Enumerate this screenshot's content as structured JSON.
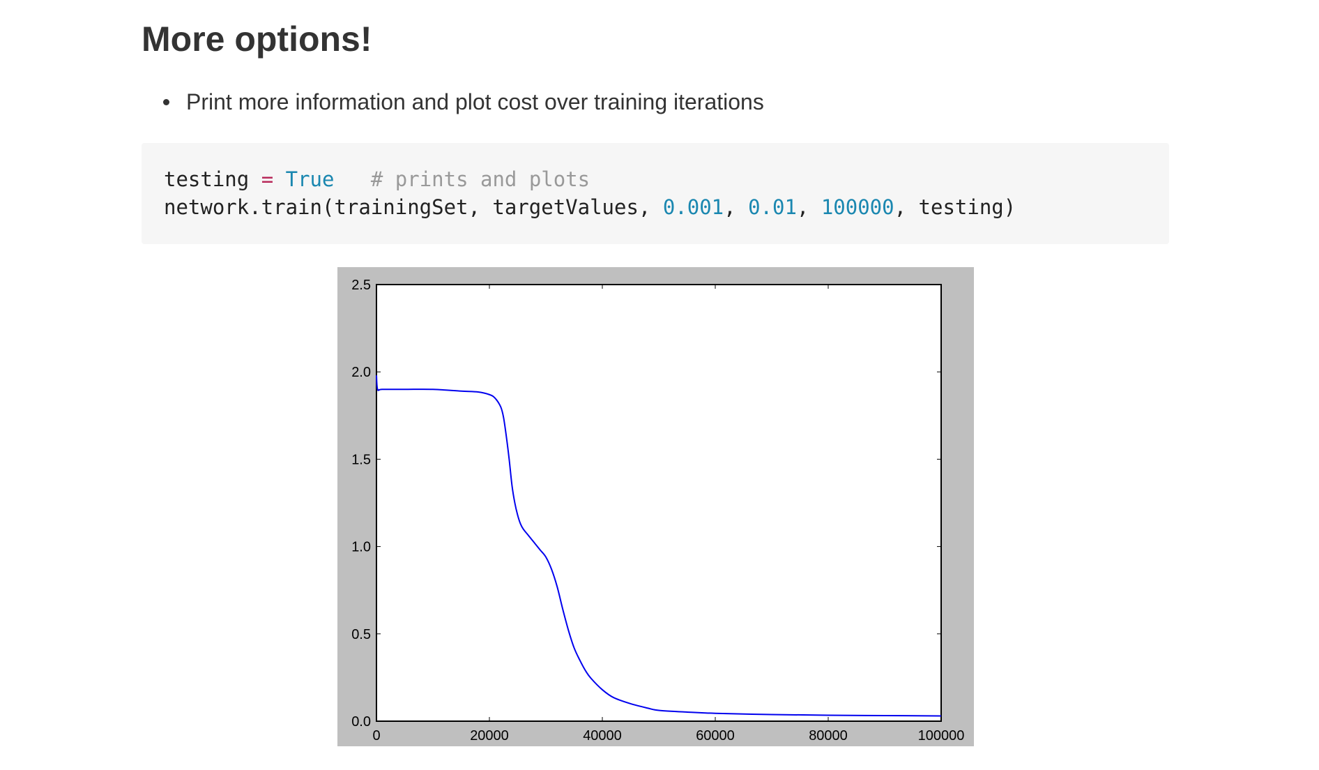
{
  "heading": "More options!",
  "bullets": [
    "Print more information and plot cost over training iterations"
  ],
  "code": {
    "line1": {
      "var": "testing ",
      "op": "=",
      "space": " ",
      "kw": "True",
      "gap": "   ",
      "comment": "# prints and plots"
    },
    "line2": {
      "prefix": "network.train(trainingSet, targetValues, ",
      "num1": "0.001",
      "sep1": ", ",
      "num2": "0.01",
      "sep2": ", ",
      "num3": "100000",
      "suffix": ", testing)"
    }
  },
  "colors": {
    "figure_background": "#bfbfbf",
    "line": "#0000ee",
    "code_background": "#f6f6f6"
  },
  "chart_data": {
    "type": "line",
    "title": "",
    "xlabel": "",
    "ylabel": "",
    "xlim": [
      0,
      100000
    ],
    "ylim": [
      0,
      2.5
    ],
    "xticks": [
      0,
      20000,
      40000,
      60000,
      80000,
      100000
    ],
    "yticks": [
      0.0,
      0.5,
      1.0,
      1.5,
      2.0,
      2.5
    ],
    "xtick_labels": [
      "0",
      "20000",
      "40000",
      "60000",
      "80000",
      "100000"
    ],
    "ytick_labels": [
      "0.0",
      "0.5",
      "1.0",
      "1.5",
      "2.0",
      "2.5"
    ],
    "grid": false,
    "legend": "none",
    "series": [
      {
        "x": [
          0,
          200,
          1000,
          5000,
          10000,
          15000,
          18000,
          20000,
          21000,
          22000,
          22500,
          23000,
          23500,
          24000,
          24500,
          25000,
          25500,
          26000,
          27000,
          28000,
          29000,
          30000,
          31000,
          32000,
          33000,
          34000,
          35000,
          36000,
          37000,
          38000,
          40000,
          42000,
          45000,
          48000,
          50000,
          55000,
          60000,
          70000,
          80000,
          90000,
          100000
        ],
        "y": [
          1.98,
          1.9,
          1.9,
          1.9,
          1.9,
          1.89,
          1.885,
          1.87,
          1.85,
          1.8,
          1.74,
          1.63,
          1.5,
          1.35,
          1.25,
          1.18,
          1.13,
          1.1,
          1.06,
          1.02,
          0.98,
          0.94,
          0.87,
          0.77,
          0.64,
          0.52,
          0.42,
          0.35,
          0.29,
          0.245,
          0.18,
          0.135,
          0.1,
          0.075,
          0.062,
          0.052,
          0.045,
          0.038,
          0.034,
          0.032,
          0.03
        ]
      }
    ]
  }
}
